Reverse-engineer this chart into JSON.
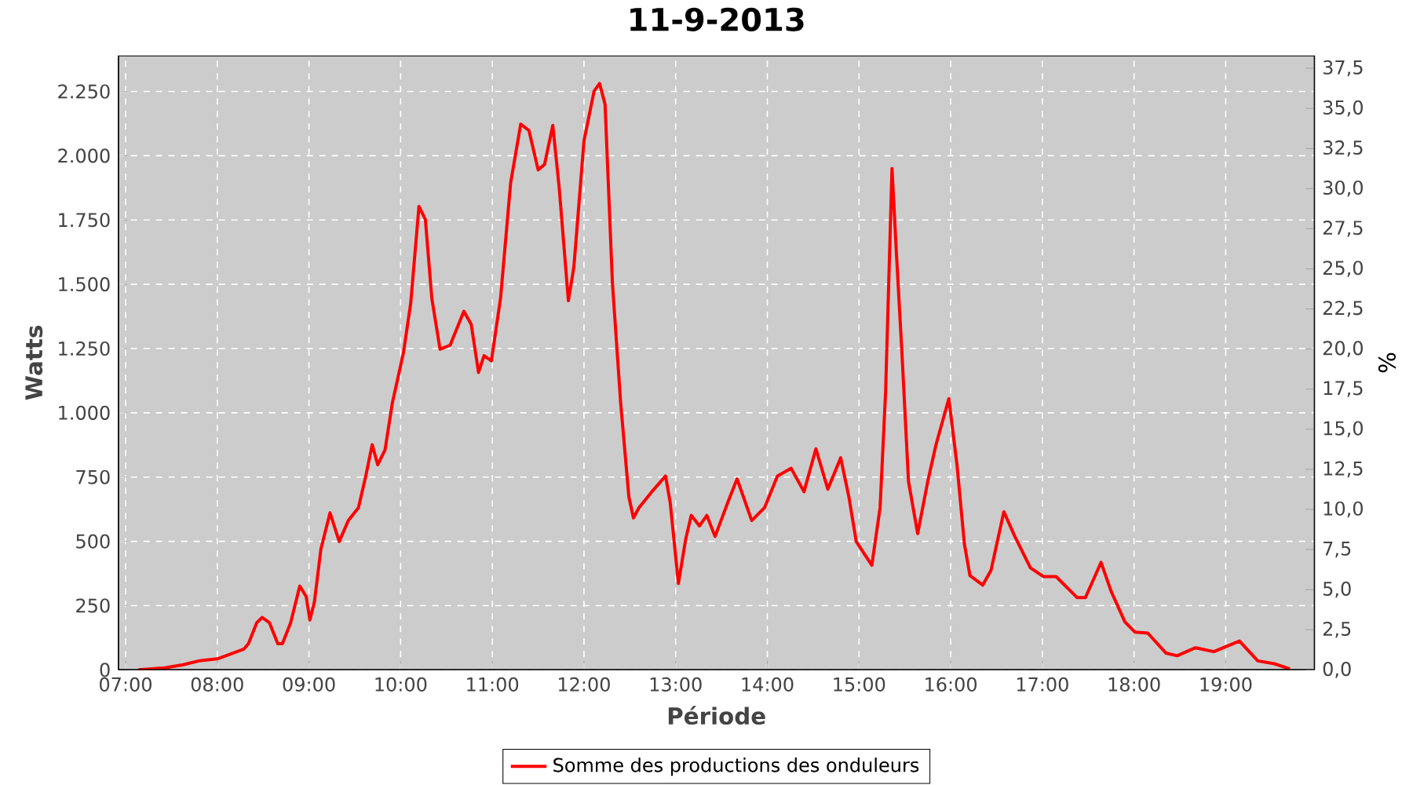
{
  "chart_data": {
    "type": "line",
    "title": "11-9-2013",
    "xlabel": "Période",
    "ylabel": "Watts",
    "y2label": "%",
    "x": [
      7.14,
      7.43,
      7.63,
      7.8,
      8.0,
      8.14,
      8.29,
      8.34,
      8.43,
      8.49,
      8.57,
      8.66,
      8.71,
      8.8,
      8.9,
      8.97,
      9.01,
      9.06,
      9.13,
      9.23,
      9.33,
      9.43,
      9.54,
      9.62,
      9.69,
      9.75,
      9.83,
      9.91,
      10.03,
      10.11,
      10.2,
      10.27,
      10.34,
      10.43,
      10.54,
      10.69,
      10.77,
      10.85,
      10.91,
      10.99,
      11.09,
      11.2,
      11.31,
      11.4,
      11.5,
      11.57,
      11.66,
      11.73,
      11.83,
      11.89,
      12.0,
      12.11,
      12.17,
      12.23,
      12.31,
      12.4,
      12.49,
      12.54,
      12.6,
      12.74,
      12.89,
      12.94,
      13.03,
      13.11,
      13.17,
      13.26,
      13.34,
      13.43,
      13.57,
      13.67,
      13.83,
      13.97,
      14.11,
      14.26,
      14.4,
      14.53,
      14.66,
      14.8,
      14.89,
      14.97,
      15.14,
      15.23,
      15.29,
      15.36,
      15.41,
      15.47,
      15.54,
      15.64,
      15.75,
      15.84,
      15.98,
      16.07,
      16.15,
      16.21,
      16.35,
      16.44,
      16.58,
      16.7,
      16.87,
      17.01,
      17.15,
      17.38,
      17.47,
      17.64,
      17.75,
      17.9,
      18.01,
      18.15,
      18.35,
      18.47,
      18.67,
      18.87,
      19.15,
      19.35,
      19.53,
      19.7
    ],
    "series": [
      {
        "name": "Somme des productions des onduleurs",
        "color": "#ff0000",
        "values": [
          0,
          8,
          20,
          35,
          43,
          61,
          81,
          102,
          183,
          204,
          183,
          102,
          102,
          183,
          326,
          285,
          194,
          265,
          469,
          611,
          499,
          581,
          631,
          754,
          876,
          798,
          856,
          1039,
          1232,
          1426,
          1803,
          1752,
          1446,
          1247,
          1263,
          1395,
          1344,
          1157,
          1222,
          1202,
          1446,
          1894,
          2123,
          2098,
          1945,
          1966,
          2118,
          1874,
          1436,
          1568,
          2057,
          2251,
          2281,
          2200,
          1507,
          1039,
          672,
          591,
          631,
          693,
          754,
          652,
          336,
          509,
          601,
          560,
          601,
          519,
          652,
          743,
          581,
          631,
          754,
          784,
          693,
          860,
          703,
          825,
          672,
          499,
          407,
          631,
          1080,
          1950,
          1609,
          1222,
          733,
          530,
          733,
          876,
          1055,
          794,
          489,
          367,
          330,
          387,
          615,
          519,
          397,
          363,
          363,
          281,
          281,
          418,
          306,
          187,
          147,
          143,
          65,
          55,
          86,
          71,
          112,
          35,
          24,
          4
        ]
      }
    ],
    "xlim": [
      6.92,
      19.97
    ],
    "xticks": [
      {
        "value": 7,
        "label": "07:00"
      },
      {
        "value": 8,
        "label": "08:00"
      },
      {
        "value": 9,
        "label": "09:00"
      },
      {
        "value": 10,
        "label": "10:00"
      },
      {
        "value": 11,
        "label": "11:00"
      },
      {
        "value": 12,
        "label": "12:00"
      },
      {
        "value": 13,
        "label": "13:00"
      },
      {
        "value": 14,
        "label": "14:00"
      },
      {
        "value": 15,
        "label": "15:00"
      },
      {
        "value": 16,
        "label": "16:00"
      },
      {
        "value": 17,
        "label": "17:00"
      },
      {
        "value": 18,
        "label": "18:00"
      },
      {
        "value": 19,
        "label": "19:00"
      }
    ],
    "ylim": [
      0,
      2390
    ],
    "yticks": [
      0,
      250,
      500,
      750,
      {
        "value": 1000,
        "label": "1.000"
      },
      {
        "value": 1250,
        "label": "1.250"
      },
      {
        "value": 1500,
        "label": "1.500"
      },
      {
        "value": 1750,
        "label": "1.750"
      },
      {
        "value": 2000,
        "label": "2.000"
      },
      {
        "value": 2250,
        "label": "2.250"
      }
    ],
    "y2lim": [
      0,
      38.3
    ],
    "y2ticks": [
      {
        "value": 0,
        "label": "0,0"
      },
      {
        "value": 2.5,
        "label": "2,5"
      },
      {
        "value": 5,
        "label": "5,0"
      },
      {
        "value": 7.5,
        "label": "7,5"
      },
      {
        "value": 10,
        "label": "10,0"
      },
      {
        "value": 12.5,
        "label": "12,5"
      },
      {
        "value": 15,
        "label": "15,0"
      },
      {
        "value": 17.5,
        "label": "17,5"
      },
      {
        "value": 20,
        "label": "20,0"
      },
      {
        "value": 22.5,
        "label": "22,5"
      },
      {
        "value": 25,
        "label": "25,0"
      },
      {
        "value": 27.5,
        "label": "27,5"
      },
      {
        "value": 30,
        "label": "30,0"
      },
      {
        "value": 32.5,
        "label": "32,5"
      },
      {
        "value": 35,
        "label": "35,0"
      },
      {
        "value": 37.5,
        "label": "37,5"
      }
    ],
    "grid": true,
    "legend": "bottom"
  }
}
